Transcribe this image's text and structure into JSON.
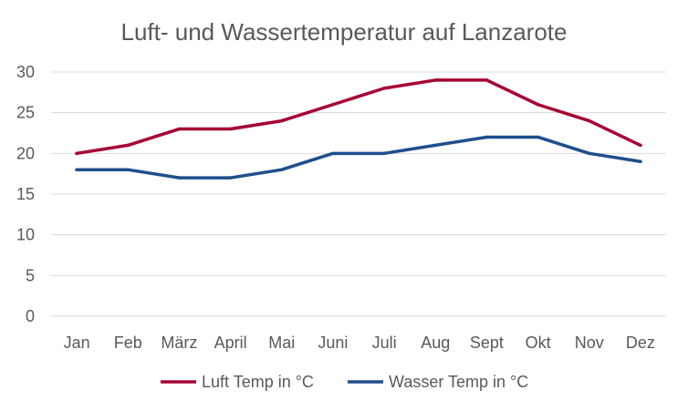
{
  "chart_data": {
    "type": "line",
    "title": "Luft- und Wassertemperatur auf Lanzarote",
    "categories": [
      "Jan",
      "Feb",
      "März",
      "April",
      "Mai",
      "Juni",
      "Juli",
      "Aug",
      "Sept",
      "Okt",
      "Nov",
      "Dez"
    ],
    "series": [
      {
        "name": "Luft Temp in °C",
        "color": "#A50034",
        "values": [
          20,
          21,
          23,
          23,
          24,
          26,
          28,
          29,
          29,
          26,
          24,
          21
        ]
      },
      {
        "name": "Wasser Temp in °C",
        "color": "#1F4E8C",
        "values": [
          18,
          18,
          17,
          17,
          18,
          20,
          20,
          21,
          22,
          22,
          20,
          19
        ]
      }
    ],
    "ylim": [
      0,
      30
    ],
    "yticks": [
      0,
      5,
      10,
      15,
      20,
      25,
      30
    ],
    "grid": true,
    "legend_position": "bottom"
  }
}
